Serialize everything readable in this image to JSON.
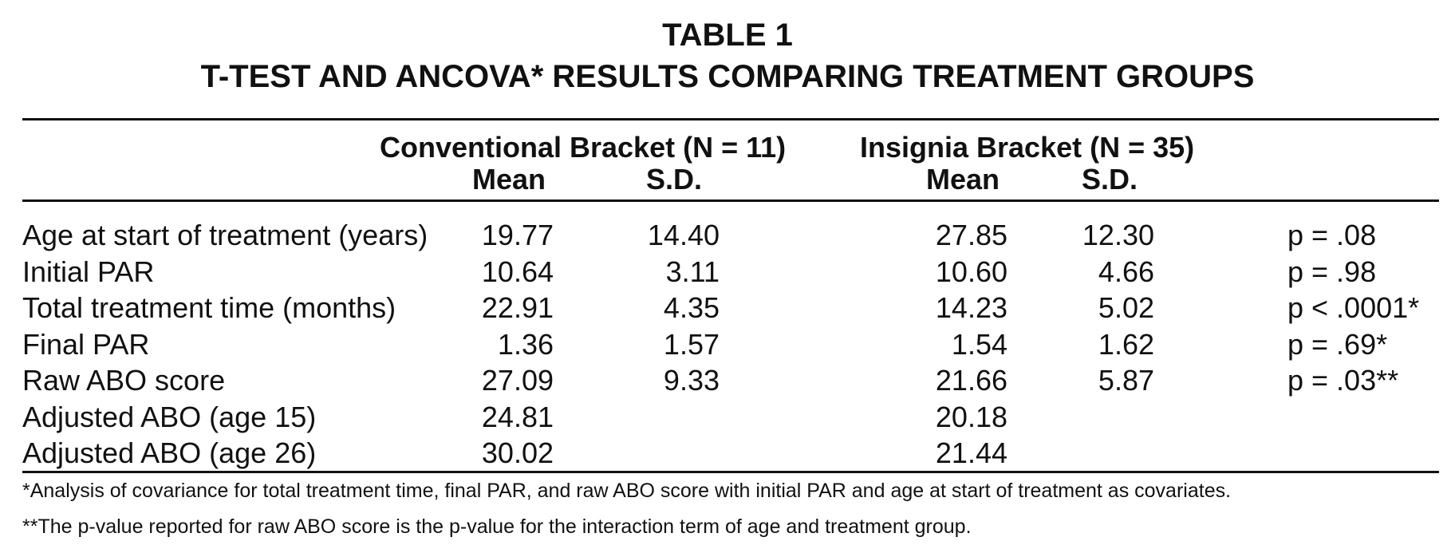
{
  "title": {
    "line1": "TABLE 1",
    "line2": "T-TEST AND ANCOVA* RESULTS COMPARING TREATMENT GROUPS"
  },
  "header": {
    "group1": "Conventional Bracket (N = 11)",
    "group2": "Insignia Bracket (N = 35)",
    "mean": "Mean",
    "sd": "S.D."
  },
  "rows": [
    {
      "label": "Age at start of treatment (years)",
      "c_mean": "19.77",
      "c_sd": "14.40",
      "i_mean": "27.85",
      "i_sd": "12.30",
      "p": "p = .08"
    },
    {
      "label": "Initial PAR",
      "c_mean": "10.64",
      "c_sd": "3.11",
      "i_mean": "10.60",
      "i_sd": "4.66",
      "p": "p = .98"
    },
    {
      "label": "Total treatment time (months)",
      "c_mean": "22.91",
      "c_sd": "4.35",
      "i_mean": "14.23",
      "i_sd": "5.02",
      "p": "p < .0001*"
    },
    {
      "label": "Final PAR",
      "c_mean": "1.36",
      "c_sd": "1.57",
      "i_mean": "1.54",
      "i_sd": "1.62",
      "p": "p = .69*"
    },
    {
      "label": "Raw ABO score",
      "c_mean": "27.09",
      "c_sd": "9.33",
      "i_mean": "21.66",
      "i_sd": "5.87",
      "p": "p = .03**"
    },
    {
      "label": "Adjusted ABO (age 15)",
      "c_mean": "24.81",
      "c_sd": "",
      "i_mean": "20.18",
      "i_sd": "",
      "p": ""
    },
    {
      "label": "Adjusted ABO (age 26)",
      "c_mean": "30.02",
      "c_sd": "",
      "i_mean": "21.44",
      "i_sd": "",
      "p": ""
    }
  ],
  "notes": [
    "*Analysis of covariance for total treatment time, final PAR, and raw ABO score with initial PAR and age at start of treatment as covariates.",
    "**The p-value reported for raw ABO score is the p-value for the interaction term of age and treatment group."
  ]
}
